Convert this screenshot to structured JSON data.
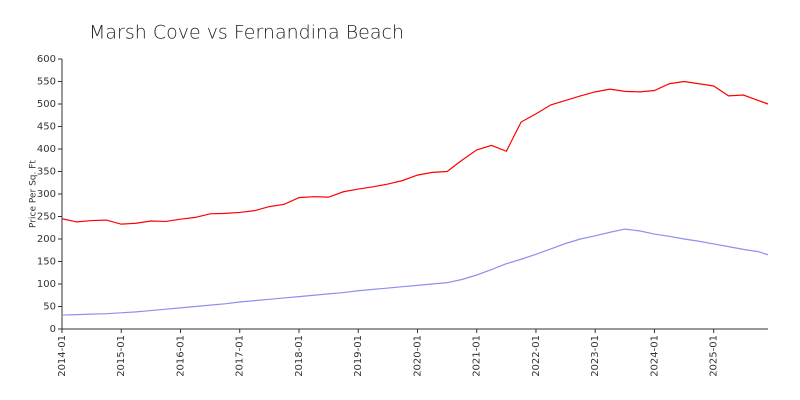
{
  "chart_data": {
    "type": "line",
    "title": "Marsh Cove vs Fernandina Beach",
    "y_label": "Price Per Sq. Ft",
    "x": [
      "2014-01",
      "2014-04",
      "2014-07",
      "2014-10",
      "2015-01",
      "2015-04",
      "2015-07",
      "2015-10",
      "2016-01",
      "2016-04",
      "2016-07",
      "2016-10",
      "2017-01",
      "2017-04",
      "2017-07",
      "2017-10",
      "2018-01",
      "2018-04",
      "2018-07",
      "2018-10",
      "2019-01",
      "2019-04",
      "2019-07",
      "2019-10",
      "2020-01",
      "2020-04",
      "2020-07",
      "2020-10",
      "2021-01",
      "2021-04",
      "2021-07",
      "2021-10",
      "2022-01",
      "2022-04",
      "2022-07",
      "2022-10",
      "2023-01",
      "2023-04",
      "2023-07",
      "2023-10",
      "2024-01",
      "2024-04",
      "2024-07",
      "2024-10",
      "2025-01",
      "2025-04",
      "2025-07",
      "2025-10",
      "2025-12"
    ],
    "series": [
      {
        "color": "#ff0000",
        "values": [
          245,
          238,
          241,
          242,
          233,
          235,
          240,
          239,
          244,
          248,
          256,
          257,
          259,
          263,
          272,
          277,
          292,
          294,
          293,
          305,
          311,
          316,
          322,
          330,
          342,
          348,
          350,
          375,
          398,
          408,
          395,
          460,
          478,
          498,
          508,
          518,
          527,
          533,
          528,
          527,
          530,
          545,
          550,
          545,
          540,
          518,
          520,
          508,
          500
        ]
      },
      {
        "color": "#8f8fef",
        "values": [
          31,
          32,
          33,
          34,
          36,
          38,
          41,
          44,
          47,
          50,
          53,
          56,
          60,
          63,
          66,
          69,
          72,
          75,
          78,
          81,
          85,
          88,
          91,
          94,
          97,
          100,
          103,
          110,
          120,
          132,
          145,
          155,
          166,
          178,
          190,
          200,
          207,
          215,
          222,
          218,
          211,
          206,
          200,
          195,
          189,
          183,
          177,
          172,
          165
        ]
      }
    ],
    "xlim": [
      "2014-01",
      "2025-12"
    ],
    "xticks": [
      "2014-01",
      "2015-01",
      "2016-01",
      "2017-01",
      "2018-01",
      "2019-01",
      "2020-01",
      "2021-01",
      "2022-01",
      "2023-01",
      "2024-01",
      "2025-01"
    ],
    "ylim": [
      0,
      600
    ],
    "yticks": [
      0,
      50,
      100,
      150,
      200,
      250,
      300,
      350,
      400,
      450,
      500,
      550,
      600
    ],
    "grid": false
  }
}
